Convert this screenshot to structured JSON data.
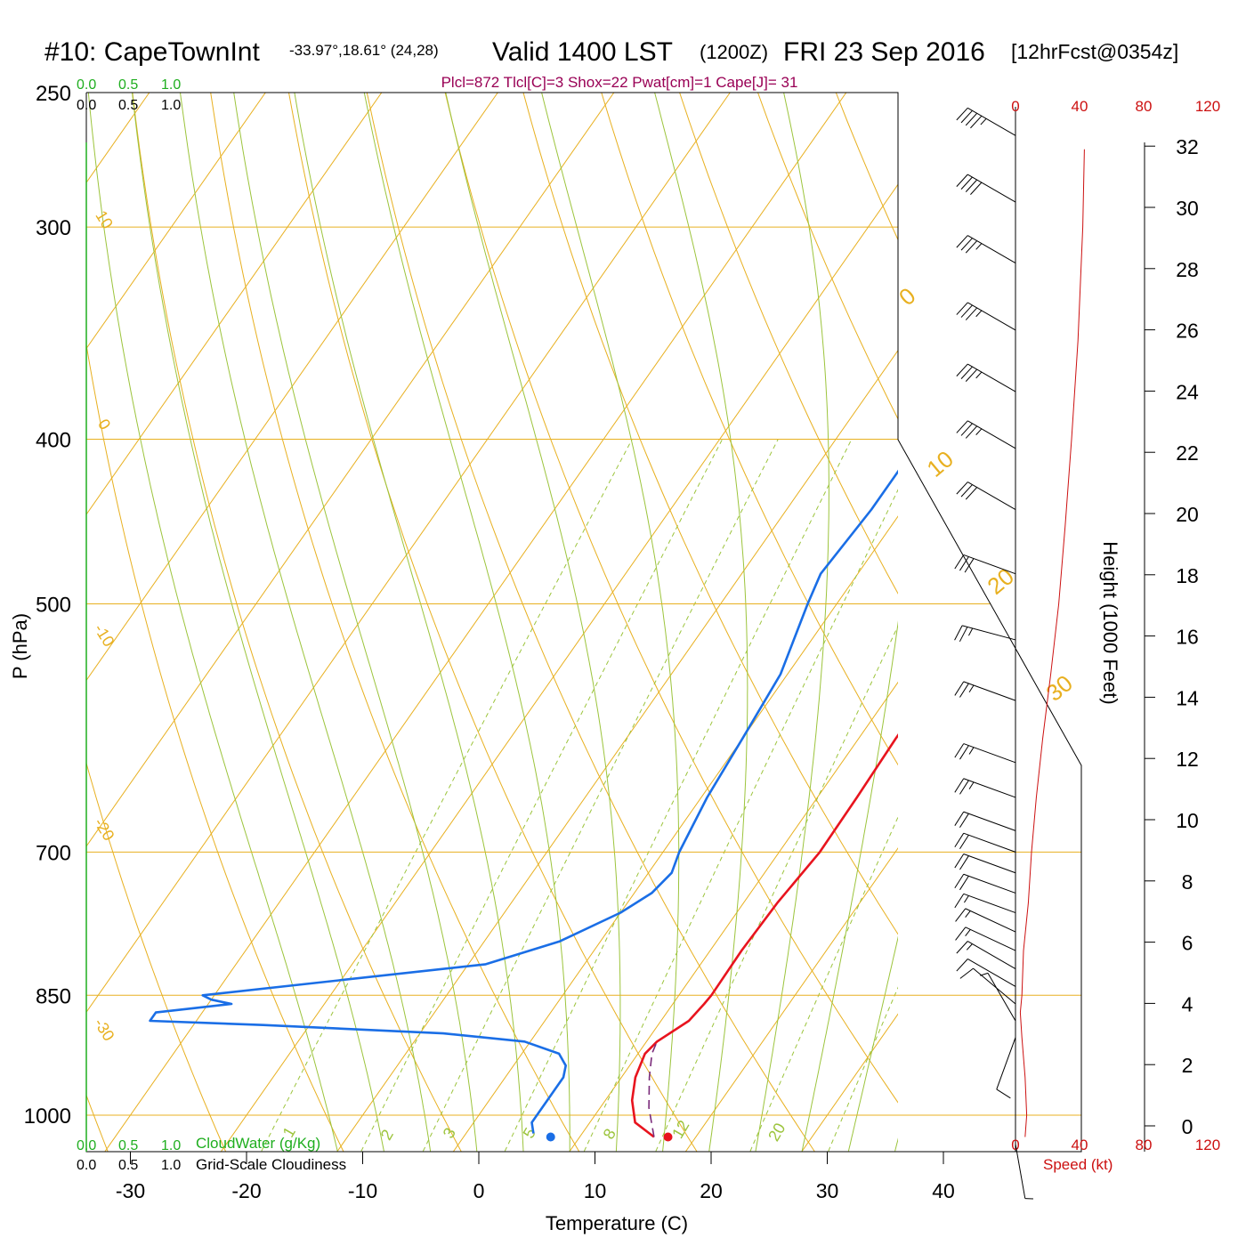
{
  "header": {
    "station": "#10: CapeTownInt",
    "coords": "-33.97°,18.61° (24,28)",
    "valid": "Valid 1400 LST",
    "zulu": "(1200Z)",
    "date": "FRI 23 Sep 2016",
    "forecast": "[12hrFcst@0354z]",
    "indices": "Plcl=872 Tlcl[C]=3 Shox=22 Pwat[cm]=1 Cape[J]= 31"
  },
  "colors": {
    "temperature": "#e8141e",
    "dewpoint": "#1a6ee6",
    "parcel": "#7a2a7a",
    "isotherm": "#e8b020",
    "adiabat": "#9cc43c",
    "mixing": "#9cc43c",
    "cloud": "#1fae1f",
    "speed": "#cc1010",
    "index": "#990055"
  },
  "chart_data": {
    "type": "line",
    "chart_kind": "skew-T log-P sounding",
    "xlabel": "Temperature (C)",
    "ylabel": "P (hPa)",
    "xlim": [
      -34,
      36
    ],
    "ylim_hpa": [
      1050,
      250
    ],
    "log_pressure": true,
    "pressure_ticks": [
      {
        "p": 250,
        "label": "250"
      },
      {
        "p": 300,
        "label": "300"
      },
      {
        "p": 400,
        "label": "400"
      },
      {
        "p": 500,
        "label": "500"
      },
      {
        "p": 700,
        "label": "700"
      },
      {
        "p": 850,
        "label": "850"
      },
      {
        "p": 1000,
        "label": "1000"
      }
    ],
    "temperature_ticks": [
      {
        "t": -30,
        "label": "-30"
      },
      {
        "t": -20,
        "label": "-20"
      },
      {
        "t": -10,
        "label": "-10"
      },
      {
        "t": 0,
        "label": "0"
      },
      {
        "t": 10,
        "label": "10"
      },
      {
        "t": 20,
        "label": "20"
      },
      {
        "t": 30,
        "label": "30"
      },
      {
        "t": 40,
        "label": "40"
      }
    ],
    "series": [
      {
        "key": "temperature",
        "points": [
          [
            1030,
            16.4
          ],
          [
            1010,
            13.9
          ],
          [
            980,
            12.3
          ],
          [
            950,
            11.2
          ],
          [
            920,
            10.6
          ],
          [
            905,
            10.9
          ],
          [
            880,
            12.4
          ],
          [
            860,
            12.7
          ],
          [
            850,
            12.8
          ],
          [
            800,
            12.7
          ],
          [
            750,
            12.9
          ],
          [
            700,
            13.5
          ],
          [
            650,
            13.4
          ],
          [
            600,
            13.2
          ],
          [
            550,
            13.3
          ],
          [
            520,
            13.0
          ],
          [
            480,
            12.0
          ],
          [
            440,
            10.5
          ],
          [
            400,
            8.5
          ],
          [
            350,
            5.4
          ],
          [
            300,
            2.1
          ],
          [
            270,
            0.4
          ]
        ]
      },
      {
        "key": "dewpoint",
        "points": [
          [
            1025,
            5.8
          ],
          [
            1010,
            5.0
          ],
          [
            980,
            5.0
          ],
          [
            950,
            5.0
          ],
          [
            935,
            4.5
          ],
          [
            920,
            3.2
          ],
          [
            905,
            -0.5
          ],
          [
            895,
            -8.0
          ],
          [
            885,
            -24.0
          ],
          [
            880,
            -34.0
          ],
          [
            870,
            -34.0
          ],
          [
            865,
            -31.0
          ],
          [
            860,
            -28.0
          ],
          [
            855,
            -30.0
          ],
          [
            850,
            -31.0
          ],
          [
            815,
            -8.5
          ],
          [
            790,
            -3.5
          ],
          [
            760,
            0.0
          ],
          [
            740,
            1.5
          ],
          [
            720,
            2.0
          ],
          [
            700,
            1.4
          ],
          [
            650,
            0.5
          ],
          [
            600,
            0.0
          ],
          [
            550,
            -0.6
          ],
          [
            500,
            -2.5
          ],
          [
            480,
            -3.2
          ],
          [
            440,
            -2.7
          ],
          [
            400,
            -2.7
          ],
          [
            350,
            -3.2
          ],
          [
            310,
            -3.2
          ],
          [
            290,
            -2.8
          ],
          [
            270,
            -2.7
          ]
        ]
      },
      {
        "key": "parcel",
        "dashed": true,
        "points": [
          [
            1030,
            16.4
          ],
          [
            990,
            14.2
          ],
          [
            950,
            12.4
          ],
          [
            920,
            11.2
          ],
          [
            905,
            10.9
          ]
        ]
      }
    ],
    "surface_markers": [
      {
        "key": "temperature",
        "p": 1030,
        "t": 17.6
      },
      {
        "key": "dewpoint",
        "p": 1030,
        "t": 7.5
      }
    ],
    "isotherm_labels": [
      {
        "t": 10,
        "label": "10"
      },
      {
        "t": 0,
        "label": "0"
      },
      {
        "t": -10,
        "label": "-10"
      },
      {
        "t": -20,
        "label": "-20"
      },
      {
        "t": -30,
        "label": "-30"
      }
    ],
    "isotherm_labels_right": [
      "0",
      "10",
      "20",
      "30"
    ],
    "mixing_ratio_labels": [
      "1",
      "2",
      "3",
      "5",
      "8",
      "12",
      "20"
    ],
    "cloud_scales": {
      "top_green": [
        "0.0",
        "0.5",
        "1.0"
      ],
      "top_black": [
        "0.0",
        "0.5",
        "1.0"
      ],
      "bottom_green": [
        "0.0",
        "0.5",
        "1.0"
      ],
      "bottom_black": [
        "0.0",
        "0.5",
        "1.0"
      ],
      "cloudwater_label": "CloudWater (g/Kg)",
      "cloudiness_label": "Grid-Scale Cloudiness"
    },
    "height_axis": {
      "label": "Height (1000 Feet)",
      "ticks": [
        0,
        2,
        4,
        6,
        8,
        10,
        12,
        14,
        16,
        18,
        20,
        22,
        24,
        26,
        28,
        30,
        32
      ]
    },
    "wind_speed": {
      "label": "Speed (kt)",
      "ticks": [
        "0",
        "40",
        "80",
        "120"
      ],
      "profile": [
        [
          1030,
          6
        ],
        [
          1000,
          7
        ],
        [
          950,
          6
        ],
        [
          900,
          4
        ],
        [
          870,
          3
        ],
        [
          850,
          4
        ],
        [
          800,
          5
        ],
        [
          750,
          8
        ],
        [
          700,
          10
        ],
        [
          650,
          13
        ],
        [
          600,
          17
        ],
        [
          550,
          22
        ],
        [
          500,
          27
        ],
        [
          450,
          31
        ],
        [
          400,
          35
        ],
        [
          350,
          39
        ],
        [
          300,
          42
        ],
        [
          270,
          43
        ]
      ]
    },
    "wind_barbs": [
      {
        "p": 265,
        "dir": 300,
        "kt": 45
      },
      {
        "p": 290,
        "dir": 300,
        "kt": 40
      },
      {
        "p": 315,
        "dir": 300,
        "kt": 35
      },
      {
        "p": 345,
        "dir": 300,
        "kt": 35
      },
      {
        "p": 375,
        "dir": 300,
        "kt": 35
      },
      {
        "p": 405,
        "dir": 300,
        "kt": 35
      },
      {
        "p": 440,
        "dir": 300,
        "kt": 30
      },
      {
        "p": 480,
        "dir": 290,
        "kt": 30
      },
      {
        "p": 525,
        "dir": 285,
        "kt": 25
      },
      {
        "p": 570,
        "dir": 290,
        "kt": 25
      },
      {
        "p": 620,
        "dir": 290,
        "kt": 25
      },
      {
        "p": 650,
        "dir": 290,
        "kt": 25
      },
      {
        "p": 680,
        "dir": 290,
        "kt": 20
      },
      {
        "p": 700,
        "dir": 290,
        "kt": 20
      },
      {
        "p": 720,
        "dir": 290,
        "kt": 20
      },
      {
        "p": 740,
        "dir": 290,
        "kt": 20
      },
      {
        "p": 760,
        "dir": 290,
        "kt": 15
      },
      {
        "p": 780,
        "dir": 295,
        "kt": 15
      },
      {
        "p": 800,
        "dir": 295,
        "kt": 15
      },
      {
        "p": 820,
        "dir": 300,
        "kt": 15
      },
      {
        "p": 840,
        "dir": 300,
        "kt": 10
      },
      {
        "p": 860,
        "dir": 310,
        "kt": 10
      },
      {
        "p": 880,
        "dir": 330,
        "kt": 5
      },
      {
        "p": 900,
        "dir": 200,
        "kt": 10
      },
      {
        "p": 1040,
        "dir": 170,
        "kt": 5
      }
    ]
  }
}
